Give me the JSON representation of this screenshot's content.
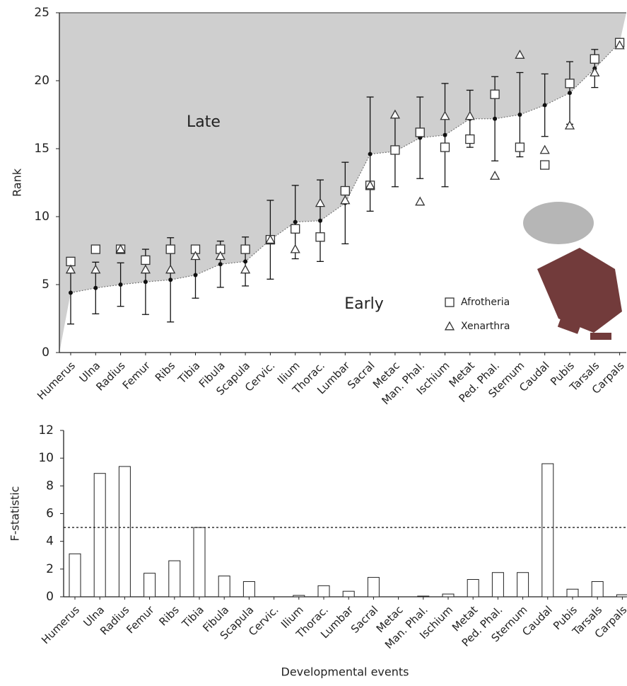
{
  "chart_data": [
    {
      "type": "point",
      "ylabel": "Rank",
      "upper_region_label": "Late",
      "lower_region_label": "Early",
      "categories": [
        "Humerus",
        "Ulna",
        "Radius",
        "Femur",
        "Ribs",
        "Tibia",
        "Fibula",
        "Scapula",
        "Cervic.",
        "Ilium",
        "Thorac.",
        "Lumbar",
        "Sacral",
        "Metac",
        "Man. Phal.",
        "Ischium",
        "Metat",
        "Ped. Phal.",
        "Sternum",
        "Caudal",
        "Pubis",
        "Tarsals",
        "Carpals"
      ],
      "values": [
        4.4,
        4.75,
        5.0,
        5.2,
        5.35,
        5.7,
        6.5,
        6.7,
        8.3,
        9.6,
        9.7,
        11.0,
        14.6,
        14.8,
        15.8,
        16.0,
        17.2,
        17.2,
        17.5,
        18.2,
        19.1,
        20.9,
        22.8
      ],
      "errors": [
        2.3,
        1.9,
        1.6,
        2.4,
        3.1,
        1.7,
        1.7,
        1.8,
        2.9,
        2.7,
        3.0,
        3.0,
        4.2,
        2.6,
        3.0,
        3.8,
        2.1,
        3.1,
        3.1,
        2.3,
        2.3,
        1.4,
        0.3
      ],
      "color": "#111111",
      "region_color": "#cfcfcf",
      "series": [
        {
          "name": "Afrotheria",
          "marker": "square",
          "color": "#333333",
          "values": [
            6.7,
            7.6,
            7.6,
            6.8,
            7.6,
            7.6,
            7.6,
            7.6,
            8.3,
            9.1,
            8.5,
            11.9,
            12.3,
            14.9,
            16.2,
            15.1,
            15.7,
            19.0,
            15.1,
            13.8,
            19.8,
            21.6,
            22.8
          ]
        },
        {
          "name": "Xenarthra",
          "marker": "triangle",
          "color": "#333333",
          "values": [
            6.1,
            6.1,
            7.6,
            6.1,
            6.1,
            7.1,
            7.1,
            6.1,
            8.3,
            7.6,
            11.0,
            11.2,
            12.3,
            17.5,
            11.1,
            17.4,
            17.4,
            13.0,
            21.9,
            14.9,
            16.7,
            20.6,
            22.6
          ]
        }
      ],
      "ylim": [
        0,
        25
      ],
      "yticks": [
        0,
        5,
        10,
        15,
        20,
        25
      ],
      "legend": "lower right"
    },
    {
      "type": "bar",
      "ylabel": "F-statistic",
      "xlabel": "Developmental events",
      "categories": [
        "Humerus",
        "Ulna",
        "Radius",
        "Femur",
        "Ribs",
        "Tibia",
        "Fibula",
        "Scapula",
        "Cervic.",
        "Ilium",
        "Thorac.",
        "Lumbar",
        "Sacral",
        "Metac",
        "Man. Phal.",
        "Ischium",
        "Metat",
        "Ped. Phal.",
        "Sternum",
        "Caudal",
        "Pubis",
        "Tarsals",
        "Carpals"
      ],
      "values": [
        3.1,
        8.9,
        9.4,
        1.7,
        2.6,
        5.0,
        1.5,
        1.1,
        0,
        0.1,
        0.8,
        0.4,
        1.4,
        0,
        0.05,
        0.2,
        1.25,
        1.75,
        1.75,
        9.6,
        0.55,
        1.1,
        0.15
      ],
      "color": "#ffffff",
      "reference_line": 5,
      "ylim": [
        0,
        12
      ],
      "yticks": [
        0,
        2,
        4,
        6,
        8,
        10,
        12
      ]
    }
  ]
}
